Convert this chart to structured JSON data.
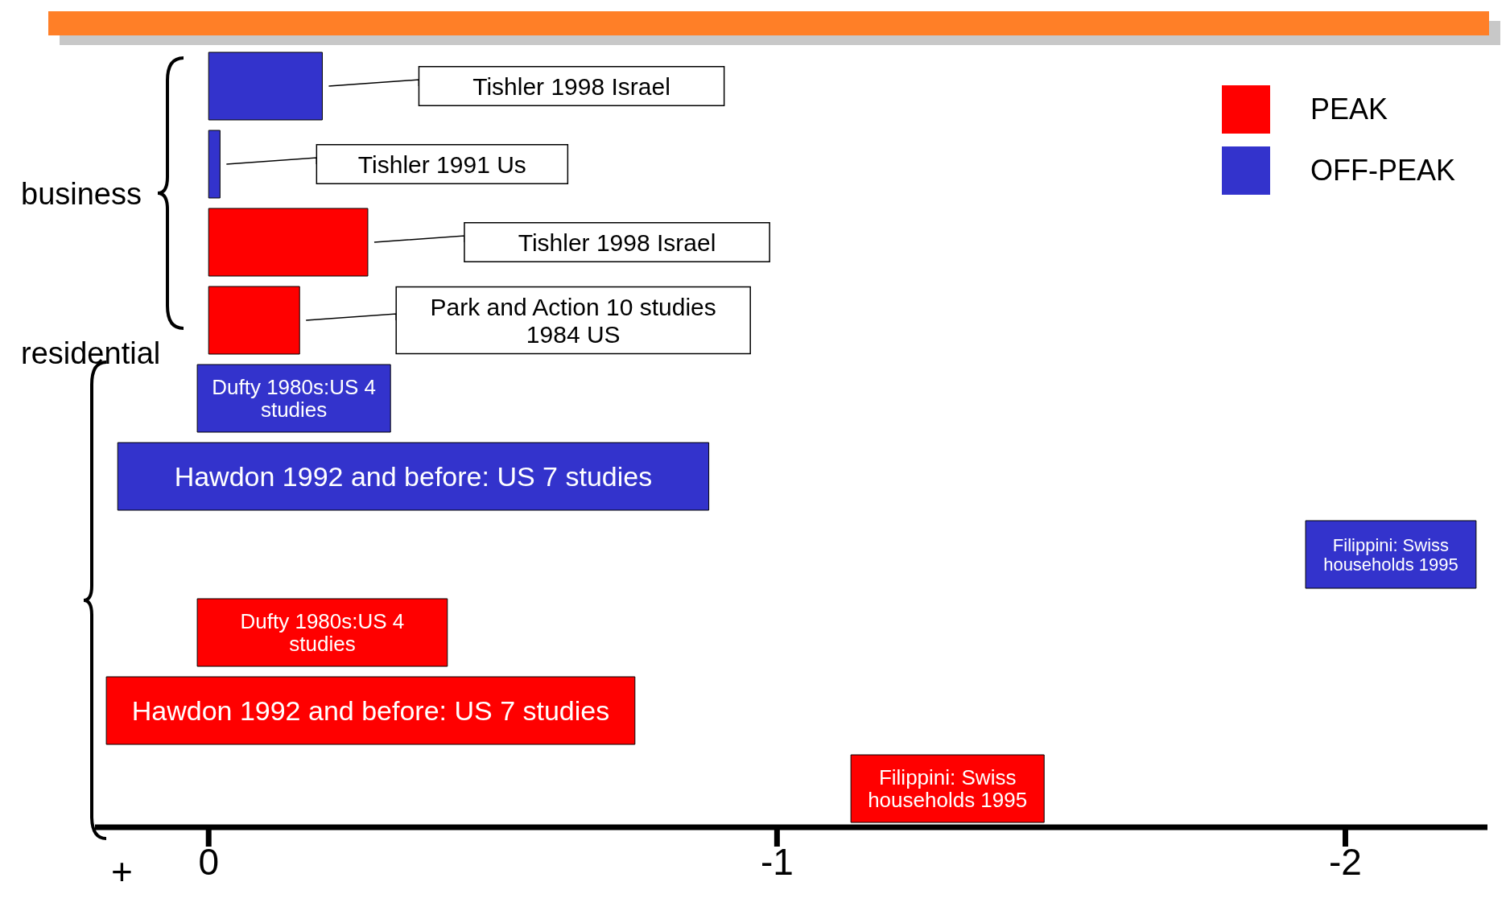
{
  "chart_data": {
    "type": "bar",
    "orientation": "horizontal",
    "categories": [
      "Tishler 1998 Israel",
      "Tishler 1991 Us",
      "Tishler 1998 Israel",
      "Park and Action 10 studies 1984 US",
      "Dufty 1980s:US 4 studies",
      "Hawdon 1992 and before: US 7 studies",
      "Filippini: Swiss households 1995",
      "Dufty 1980s:US 4 studies",
      "Hawdon 1992 and before: US 7 studies",
      "Filippini: Swiss households 1995"
    ],
    "series": [
      {
        "name": "PEAK",
        "color": "#ff0000",
        "base": [
          null,
          null,
          0,
          0,
          null,
          null,
          null,
          0.02,
          0.18,
          -1.13
        ],
        "values": [
          null,
          null,
          -0.28,
          -0.16,
          null,
          null,
          null,
          -0.44,
          -0.93,
          -0.34
        ]
      },
      {
        "name": "OFF-PEAK",
        "color": "#3333cc",
        "base": [
          0,
          0,
          null,
          null,
          0.02,
          0.16,
          -1.93,
          null,
          null,
          null
        ],
        "values": [
          -0.2,
          -0.02,
          null,
          null,
          -0.34,
          -1.04,
          -0.3,
          null,
          null,
          null
        ]
      }
    ],
    "xlim": [
      0.2,
      -2.25
    ],
    "xticks": [
      0,
      -1,
      -2
    ],
    "annotations": [
      "business",
      "residential",
      "+"
    ],
    "legend": "top right",
    "grid": false
  }
}
